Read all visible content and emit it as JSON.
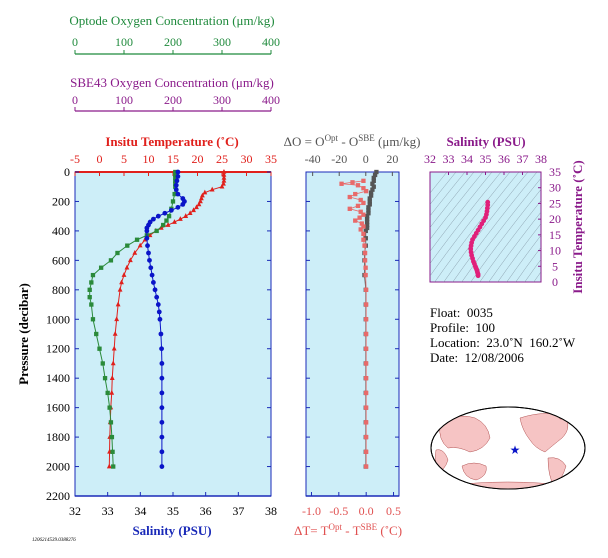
{
  "top_axes": [
    {
      "title": "Optode Oxygen Concentration (μm/kg)",
      "ticks": [
        "0",
        "100",
        "200",
        "300",
        "400"
      ],
      "color": "#1f8a3c"
    },
    {
      "title": "SBE43 Oxygen Concentration (μm/kg)",
      "ticks": [
        "0",
        "100",
        "200",
        "300",
        "400"
      ],
      "color": "#8a1a8a"
    }
  ],
  "info": {
    "float": "Float:  0035",
    "profile": "Profile:  100",
    "location": "Location:  23.0˚N  160.2˚W",
    "date": "Date:  12/08/2006"
  },
  "footnote": "1206214539.0388276",
  "colors": {
    "bg": "#cdeef8",
    "temp": "#e0201c",
    "salinity": "#2a8a3a",
    "optode": "#1f8a3c",
    "sbe": "#0a14c8",
    "diff_o": "#555555",
    "diff_t": "#e86a6a",
    "salin_pink": "#e0207a",
    "axis_blue": "#1a2ab8",
    "grid": "#4a4a8a"
  },
  "chart_data": [
    {
      "type": "line",
      "title": "",
      "ylabel": "Pressure (decibar)",
      "ylim": [
        2200,
        0
      ],
      "yticks": [
        0,
        200,
        400,
        600,
        800,
        1000,
        1200,
        1400,
        1600,
        1800,
        2000,
        2200
      ],
      "top_axis": {
        "label": "Insitu Temperature (˚C)",
        "range": [
          -5,
          35
        ],
        "ticks": [
          -5,
          0,
          5,
          10,
          15,
          20,
          25,
          30,
          35
        ]
      },
      "bottom_axis": {
        "label": "Salinity (PSU)",
        "range": [
          32,
          38
        ],
        "ticks": [
          32,
          33,
          34,
          35,
          36,
          37,
          38
        ]
      },
      "series": [
        {
          "key": "temperature",
          "axis": "top",
          "marker": "triangle",
          "points": [
            [
              0,
              25.4
            ],
            [
              20,
              25.4
            ],
            [
              40,
              25.4
            ],
            [
              60,
              25.4
            ],
            [
              80,
              25.3
            ],
            [
              100,
              25.0
            ],
            [
              120,
              23.0
            ],
            [
              140,
              21.5
            ],
            [
              160,
              21.0
            ],
            [
              180,
              20.8
            ],
            [
              200,
              20.6
            ],
            [
              220,
              20.3
            ],
            [
              240,
              19.8
            ],
            [
              260,
              19.2
            ],
            [
              280,
              18.5
            ],
            [
              300,
              17.6
            ],
            [
              320,
              16.5
            ],
            [
              340,
              15.3
            ],
            [
              360,
              14.0
            ],
            [
              380,
              12.6
            ],
            [
              400,
              11.5
            ],
            [
              430,
              10.3
            ],
            [
              460,
              9.3
            ],
            [
              500,
              8.3
            ],
            [
              550,
              7.2
            ],
            [
              600,
              6.3
            ],
            [
              650,
              5.6
            ],
            [
              700,
              5.0
            ],
            [
              750,
              4.5
            ],
            [
              800,
              4.2
            ],
            [
              900,
              3.8
            ],
            [
              1000,
              3.5
            ],
            [
              1100,
              3.2
            ],
            [
              1200,
              3.0
            ],
            [
              1300,
              2.8
            ],
            [
              1400,
              2.6
            ],
            [
              1500,
              2.5
            ],
            [
              1600,
              2.3
            ],
            [
              1700,
              2.2
            ],
            [
              1800,
              2.1
            ],
            [
              1900,
              2.05
            ],
            [
              2000,
              2.0
            ]
          ]
        },
        {
          "key": "salinity",
          "axis": "bottom",
          "marker": "square",
          "points": [
            [
              0,
              35.07
            ],
            [
              20,
              35.07
            ],
            [
              40,
              35.07
            ],
            [
              60,
              35.07
            ],
            [
              80,
              35.07
            ],
            [
              100,
              35.07
            ],
            [
              150,
              35.05
            ],
            [
              200,
              35.0
            ],
            [
              250,
              34.95
            ],
            [
              300,
              34.88
            ],
            [
              330,
              34.8
            ],
            [
              360,
              34.7
            ],
            [
              400,
              34.5
            ],
            [
              430,
              34.2
            ],
            [
              460,
              33.9
            ],
            [
              500,
              33.6
            ],
            [
              550,
              33.3
            ],
            [
              600,
              33.1
            ],
            [
              650,
              32.8
            ],
            [
              700,
              32.55
            ],
            [
              750,
              32.5
            ],
            [
              800,
              32.45
            ],
            [
              850,
              32.45
            ],
            [
              900,
              32.5
            ],
            [
              1000,
              32.55
            ],
            [
              1100,
              32.65
            ],
            [
              1200,
              32.75
            ],
            [
              1300,
              32.85
            ],
            [
              1400,
              32.92
            ],
            [
              1500,
              33.0
            ],
            [
              1600,
              33.06
            ],
            [
              1700,
              33.1
            ],
            [
              1800,
              33.13
            ],
            [
              1900,
              33.15
            ],
            [
              2000,
              33.17
            ]
          ]
        },
        {
          "key": "sbe_oxygen",
          "axis": "bottom",
          "marker": "circle",
          "points": [
            [
              0,
              35.15
            ],
            [
              30,
              35.15
            ],
            [
              60,
              35.12
            ],
            [
              90,
              35.1
            ],
            [
              120,
              35.1
            ],
            [
              150,
              35.15
            ],
            [
              180,
              35.3
            ],
            [
              200,
              35.35
            ],
            [
              220,
              35.3
            ],
            [
              240,
              35.15
            ],
            [
              260,
              34.95
            ],
            [
              280,
              34.75
            ],
            [
              300,
              34.55
            ],
            [
              320,
              34.4
            ],
            [
              340,
              34.3
            ],
            [
              360,
              34.25
            ],
            [
              380,
              34.2
            ],
            [
              400,
              34.2
            ],
            [
              450,
              34.2
            ],
            [
              500,
              34.22
            ],
            [
              550,
              34.25
            ],
            [
              600,
              34.28
            ],
            [
              650,
              34.32
            ],
            [
              700,
              34.36
            ],
            [
              750,
              34.4
            ],
            [
              800,
              34.45
            ],
            [
              850,
              34.5
            ],
            [
              900,
              34.55
            ],
            [
              950,
              34.58
            ],
            [
              1000,
              34.6
            ],
            [
              1100,
              34.63
            ],
            [
              1200,
              34.65
            ],
            [
              1300,
              34.66
            ],
            [
              1400,
              34.66
            ],
            [
              1500,
              34.66
            ],
            [
              1600,
              34.66
            ],
            [
              1700,
              34.66
            ],
            [
              1800,
              34.66
            ],
            [
              1900,
              34.66
            ],
            [
              2000,
              34.66
            ]
          ]
        }
      ]
    },
    {
      "type": "scatter",
      "title": "",
      "top_axis": {
        "label": "ΔO = O^Opt - O^SBE (μm/kg)",
        "range": [
          -45,
          25
        ],
        "ticks": [
          -40,
          -20,
          0,
          20
        ]
      },
      "bottom_axis": {
        "label": "ΔT= T^Opt - T^SBE (˚C)",
        "range": [
          -1.1,
          0.6
        ],
        "ticks": [
          "-1.0",
          "-0.5",
          "0.0",
          "0.5"
        ]
      },
      "ylim": [
        2200,
        0
      ],
      "series": [
        {
          "key": "delta_o",
          "axis": "top",
          "marker": "square",
          "points": [
            [
              0,
              8
            ],
            [
              20,
              7
            ],
            [
              40,
              6
            ],
            [
              60,
              6
            ],
            [
              80,
              5
            ],
            [
              100,
              6
            ],
            [
              120,
              5
            ],
            [
              140,
              4
            ],
            [
              160,
              4
            ],
            [
              180,
              3
            ],
            [
              200,
              3
            ],
            [
              220,
              3
            ],
            [
              240,
              2
            ],
            [
              260,
              2
            ],
            [
              280,
              2
            ],
            [
              300,
              1
            ],
            [
              320,
              1
            ],
            [
              340,
              1
            ],
            [
              360,
              1
            ],
            [
              380,
              1
            ],
            [
              400,
              0
            ],
            [
              450,
              0
            ],
            [
              500,
              0
            ],
            [
              550,
              -1
            ],
            [
              600,
              -1
            ],
            [
              700,
              -1
            ],
            [
              800,
              0
            ],
            [
              900,
              0
            ],
            [
              1000,
              0
            ],
            [
              1100,
              0
            ],
            [
              1200,
              0
            ],
            [
              1300,
              0
            ],
            [
              1400,
              0
            ],
            [
              1500,
              0
            ],
            [
              1600,
              0
            ],
            [
              1700,
              0
            ],
            [
              1800,
              0
            ],
            [
              1900,
              0
            ],
            [
              2000,
              0
            ]
          ]
        },
        {
          "key": "delta_t",
          "axis": "bottom",
          "marker": "square",
          "points": [
            [
              60,
              -0.05
            ],
            [
              70,
              -0.25
            ],
            [
              80,
              -0.45
            ],
            [
              90,
              -0.15
            ],
            [
              110,
              -0.05
            ],
            [
              130,
              0.0
            ],
            [
              150,
              -0.2
            ],
            [
              170,
              -0.3
            ],
            [
              190,
              -0.1
            ],
            [
              210,
              -0.05
            ],
            [
              230,
              -0.15
            ],
            [
              250,
              -0.3
            ],
            [
              270,
              -0.1
            ],
            [
              290,
              -0.05
            ],
            [
              310,
              -0.12
            ],
            [
              330,
              -0.2
            ],
            [
              350,
              -0.08
            ],
            [
              370,
              -0.05
            ],
            [
              390,
              -0.1
            ],
            [
              420,
              -0.05
            ],
            [
              460,
              -0.05
            ],
            [
              500,
              -0.03
            ],
            [
              550,
              -0.02
            ],
            [
              600,
              -0.02
            ],
            [
              650,
              -0.01
            ],
            [
              700,
              -0.01
            ],
            [
              800,
              0
            ],
            [
              900,
              0
            ],
            [
              1000,
              0
            ],
            [
              1100,
              0
            ],
            [
              1200,
              0
            ],
            [
              1300,
              0
            ],
            [
              1400,
              0
            ],
            [
              1500,
              0
            ],
            [
              1600,
              0
            ],
            [
              1700,
              0
            ],
            [
              1800,
              0
            ],
            [
              1900,
              0
            ],
            [
              2000,
              0
            ]
          ]
        }
      ]
    },
    {
      "type": "scatter",
      "title": "",
      "top_axis": {
        "label": "Salinity (PSU)",
        "range": [
          32,
          38
        ],
        "ticks": [
          32,
          33,
          34,
          35,
          36,
          37,
          38
        ]
      },
      "right_axis": {
        "label": "Insitu Temperature (˚C)",
        "range": [
          0,
          35
        ],
        "ticks": [
          0,
          5,
          10,
          15,
          20,
          25,
          30,
          35
        ]
      },
      "series": [
        {
          "key": "ts",
          "marker": "circle",
          "points": [
            [
              34.6,
              2.0
            ],
            [
              34.6,
              2.5
            ],
            [
              34.57,
              3.0
            ],
            [
              34.55,
              3.5
            ],
            [
              34.52,
              4.0
            ],
            [
              34.48,
              4.5
            ],
            [
              34.45,
              5.0
            ],
            [
              34.4,
              5.8
            ],
            [
              34.35,
              6.5
            ],
            [
              34.3,
              7.5
            ],
            [
              34.25,
              8.5
            ],
            [
              34.22,
              9.5
            ],
            [
              34.2,
              10.5
            ],
            [
              34.22,
              11.5
            ],
            [
              34.25,
              12.5
            ],
            [
              34.3,
              13.5
            ],
            [
              34.4,
              14.5
            ],
            [
              34.5,
              15.5
            ],
            [
              34.6,
              16.5
            ],
            [
              34.7,
              17.5
            ],
            [
              34.8,
              18.5
            ],
            [
              34.9,
              19.5
            ],
            [
              35.0,
              20.5
            ],
            [
              35.05,
              21.5
            ],
            [
              35.08,
              22.5
            ],
            [
              35.1,
              23.5
            ],
            [
              35.12,
              24.5
            ],
            [
              35.12,
              25.4
            ]
          ]
        }
      ]
    }
  ]
}
